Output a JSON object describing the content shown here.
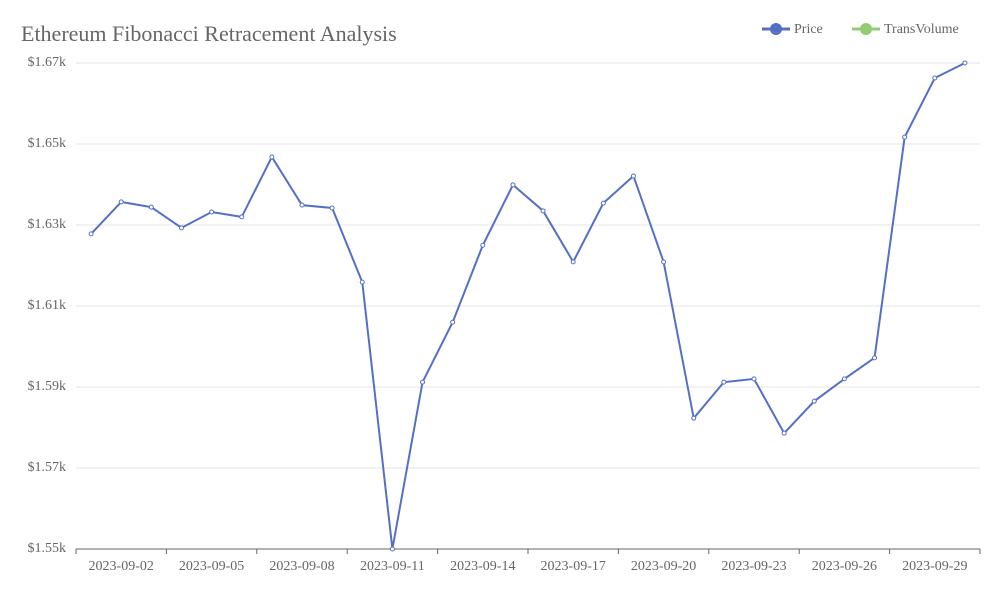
{
  "chart_data": {
    "type": "line",
    "title": "Ethereum Fibonacci Retracement Analysis",
    "categories": [
      null,
      "2023-09-02",
      null,
      null,
      "2023-09-05",
      null,
      null,
      "2023-09-08",
      null,
      null,
      "2023-09-11",
      null,
      null,
      "2023-09-14",
      null,
      null,
      "2023-09-17",
      null,
      null,
      "2023-09-20",
      null,
      null,
      "2023-09-23",
      null,
      null,
      "2023-09-26",
      null,
      null,
      "2023-09-29",
      null
    ],
    "series": [
      {
        "name": "Price",
        "color": "#5470c6",
        "values": [
          1627.8,
          1635.7,
          1634.4,
          1629.3,
          1633.2,
          1632,
          1646.8,
          1634.9,
          1634.2,
          1615.9,
          1550,
          1591.2,
          1606,
          1625,
          1639.9,
          1633.5,
          1620.9,
          1635.4,
          1642.1,
          1620.9,
          1582.3,
          1591.2,
          1592,
          1578.6,
          1586.5,
          1592,
          1597.2,
          1651.7,
          1666.3,
          1670
        ]
      },
      {
        "name": "TransVolume",
        "color": "#91cc75",
        "values": [
          null,
          null,
          null,
          null,
          null,
          null,
          null,
          null,
          null,
          null,
          null,
          null,
          null,
          null,
          null,
          null,
          null,
          null,
          null,
          null,
          null,
          null,
          null,
          null,
          null,
          null,
          null,
          null,
          null,
          null
        ]
      }
    ],
    "ylim": [
      1550,
      1670
    ],
    "yticks": [
      {
        "value": 1550,
        "label": "$1.55k"
      },
      {
        "value": 1570,
        "label": "$1.57k"
      },
      {
        "value": 1590,
        "label": "$1.59k"
      },
      {
        "value": 1610,
        "label": "$1.61k"
      },
      {
        "value": 1630,
        "label": "$1.63k"
      },
      {
        "value": 1650,
        "label": "$1.65k"
      },
      {
        "value": 1670,
        "label": "$1.67k"
      }
    ],
    "grid": true,
    "legend": "top-right"
  }
}
